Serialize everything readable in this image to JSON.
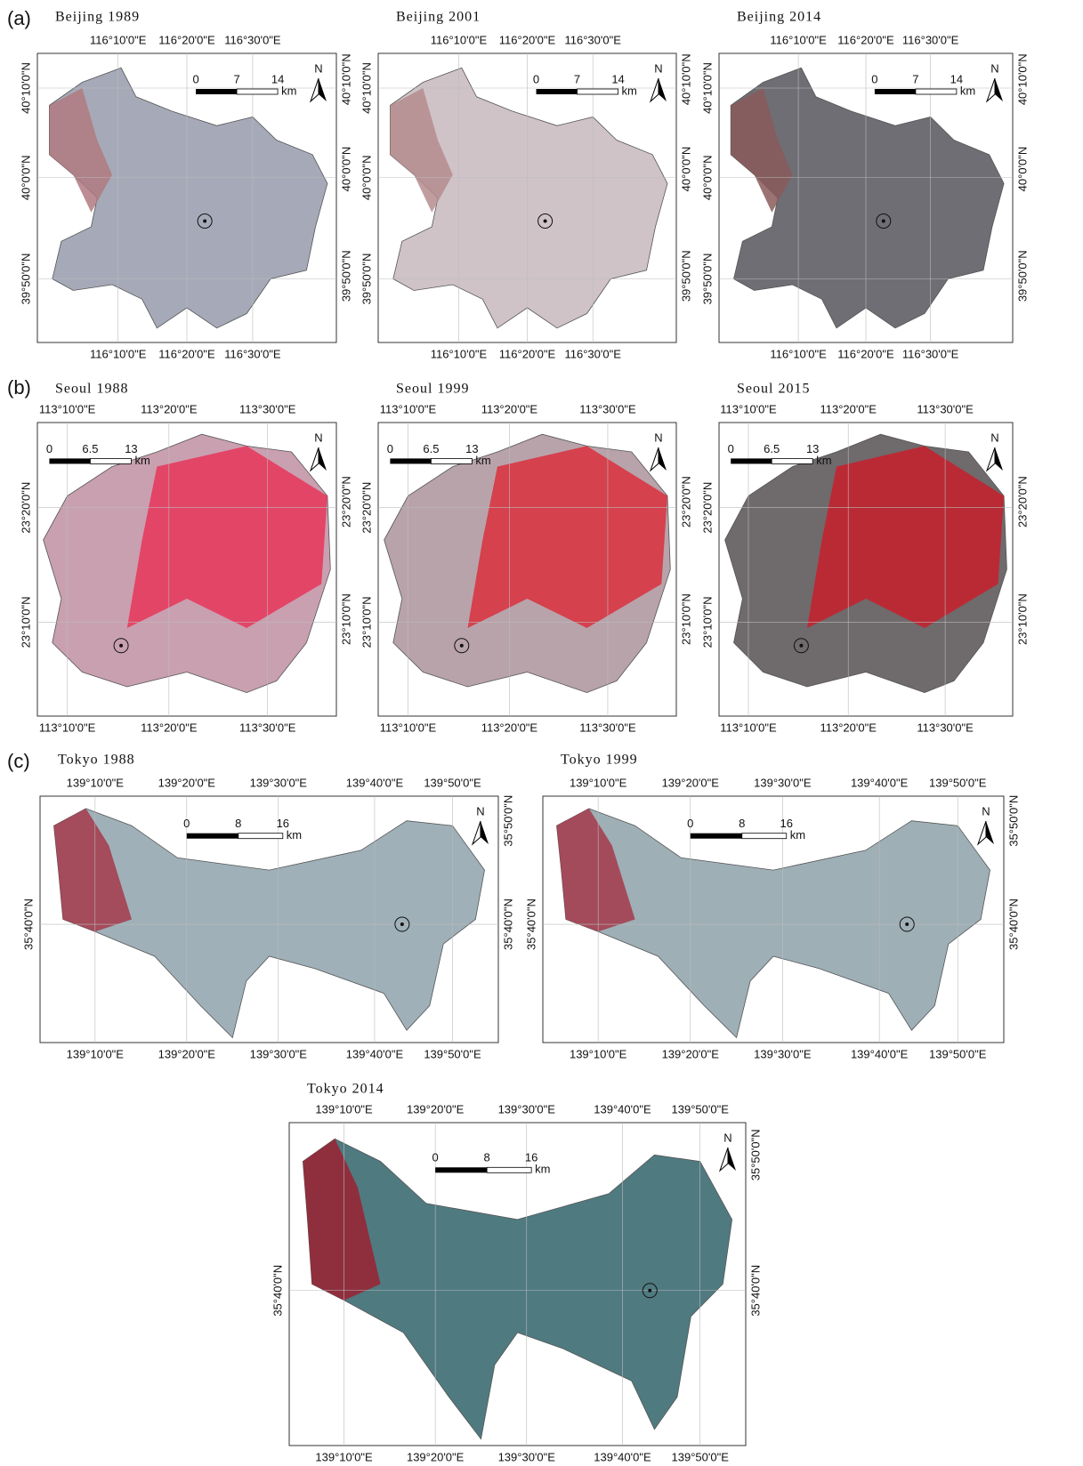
{
  "sections": [
    {
      "label": "(a)",
      "maps": [
        {
          "title": "Beijing 1989",
          "top_ticks": [
            "116°10'0\"E",
            "116°20'0\"E",
            "116°30'0\"E"
          ],
          "bottom_ticks": [
            "116°10'0\"E",
            "116°20'0\"E",
            "116°30'0\"E"
          ],
          "left_ticks": [
            "40°10'0\"N",
            "40°0'0\"N",
            "39°50'0\"N"
          ],
          "right_ticks": [
            "40°10'0\"N",
            "40°0'0\"N",
            "39°50'0\"N"
          ],
          "scale": [
            "0",
            "7",
            "14",
            "km"
          ],
          "north": "N"
        },
        {
          "title": "Beijing 2001",
          "top_ticks": [
            "116°10'0\"E",
            "116°20'0\"E",
            "116°30'0\"E"
          ],
          "bottom_ticks": [
            "116°10'0\"E",
            "116°20'0\"E",
            "116°30'0\"E"
          ],
          "left_ticks": [
            "40°10'0\"N",
            "40°0'0\"N",
            "39°50'0\"N"
          ],
          "right_ticks": [
            "40°10'0\"N",
            "40°0'0\"N",
            "39°50'0\"N"
          ],
          "scale": [
            "0",
            "7",
            "14",
            "km"
          ],
          "north": "N"
        },
        {
          "title": "Beijing 2014",
          "top_ticks": [
            "116°10'0\"E",
            "116°20'0\"E",
            "116°30'0\"E"
          ],
          "bottom_ticks": [
            "116°10'0\"E",
            "116°20'0\"E",
            "116°30'0\"E"
          ],
          "left_ticks": [
            "40°10'0\"N",
            "40°0'0\"N",
            "39°50'0\"N"
          ],
          "right_ticks": [
            "40°10'0\"N",
            "40°0'0\"N",
            "39°50'0\"N"
          ],
          "scale": [
            "0",
            "7",
            "14",
            "km"
          ],
          "north": "N"
        }
      ]
    },
    {
      "label": "(b)",
      "maps": [
        {
          "title": "Seoul 1988",
          "top_ticks": [
            "113°10'0\"E",
            "113°20'0\"E",
            "113°30'0\"E"
          ],
          "bottom_ticks": [
            "113°10'0\"E",
            "113°20'0\"E",
            "113°30'0\"E"
          ],
          "left_ticks": [
            "23°20'0\"N",
            "23°10'0\"N"
          ],
          "right_ticks": [
            "23°20'0\"N",
            "23°10'0\"N"
          ],
          "scale": [
            "0",
            "6.5",
            "13",
            "km"
          ],
          "north": "N"
        },
        {
          "title": "Seoul 1999",
          "top_ticks": [
            "113°10'0\"E",
            "113°20'0\"E",
            "113°30'0\"E"
          ],
          "bottom_ticks": [
            "113°10'0\"E",
            "113°20'0\"E",
            "113°30'0\"E"
          ],
          "left_ticks": [
            "23°20'0\"N",
            "23°10'0\"N"
          ],
          "right_ticks": [
            "23°20'0\"N",
            "23°10'0\"N"
          ],
          "scale": [
            "0",
            "6.5",
            "13",
            "km"
          ],
          "north": "N"
        },
        {
          "title": "Seoul 2015",
          "top_ticks": [
            "113°10'0\"E",
            "113°20'0\"E",
            "113°30'0\"E"
          ],
          "bottom_ticks": [
            "113°10'0\"E",
            "113°20'0\"E",
            "113°30'0\"E"
          ],
          "left_ticks": [
            "23°20'0\"N",
            "23°10'0\"N"
          ],
          "right_ticks": [
            "23°20'0\"N",
            "23°10'0\"N"
          ],
          "scale": [
            "0",
            "6.5",
            "13",
            "km"
          ],
          "north": "N"
        }
      ]
    },
    {
      "label": "(c)",
      "maps": [
        {
          "title": "Tokyo 1988",
          "top_ticks": [
            "139°10'0\"E",
            "139°20'0\"E",
            "139°30'0\"E",
            "139°40'0\"E",
            "139°50'0\"E"
          ],
          "bottom_ticks": [
            "139°10'0\"E",
            "139°20'0\"E",
            "139°30'0\"E",
            "139°40'0\"E",
            "139°50'0\"E"
          ],
          "left_ticks": [
            "35°40'0\"N"
          ],
          "right_ticks": [
            "35°50'0\"N",
            "35°40'0\"N"
          ],
          "scale": [
            "0",
            "8",
            "16",
            "km"
          ],
          "north": "N"
        },
        {
          "title": "Tokyo 1999",
          "top_ticks": [
            "139°10'0\"E",
            "139°20'0\"E",
            "139°30'0\"E",
            "139°40'0\"E",
            "139°50'0\"E"
          ],
          "bottom_ticks": [
            "139°10'0\"E",
            "139°20'0\"E",
            "139°30'0\"E",
            "139°40'0\"E",
            "139°50'0\"E"
          ],
          "left_ticks": [
            "35°40'0\"N"
          ],
          "right_ticks": [
            "35°50'0\"N",
            "35°40'0\"N"
          ],
          "scale": [
            "0",
            "8",
            "16",
            "km"
          ],
          "north": "N"
        },
        {
          "title": "Tokyo 2014",
          "top_ticks": [
            "139°10'0\"E",
            "139°20'0\"E",
            "139°30'0\"E",
            "139°40'0\"E",
            "139°50'0\"E"
          ],
          "bottom_ticks": [
            "139°10'0\"E",
            "139°20'0\"E",
            "139°30'0\"E",
            "139°40'0\"E",
            "139°50'0\"E"
          ],
          "left_ticks": [
            "35°40'0\"N"
          ],
          "right_ticks": [
            "35°50'0\"N",
            "35°40'0\"N"
          ],
          "scale": [
            "0",
            "8",
            "16",
            "km"
          ],
          "north": "N"
        }
      ]
    }
  ]
}
